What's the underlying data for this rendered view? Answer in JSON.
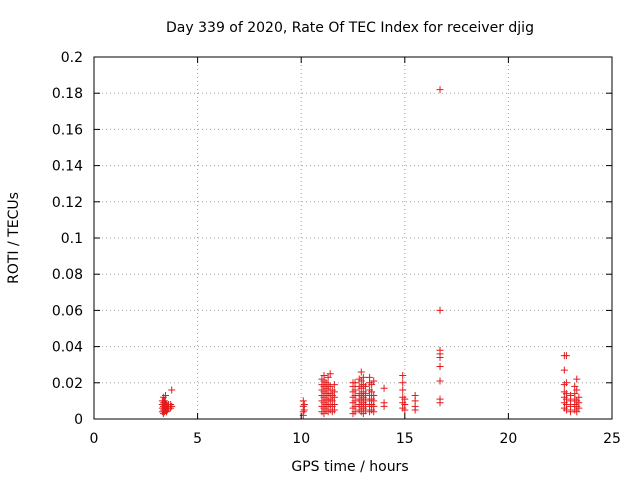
{
  "chart_data": {
    "type": "scatter",
    "title": "Day 339 of 2020, Rate Of TEC Index for receiver djig",
    "xlabel": "GPS time / hours",
    "ylabel": "ROTI / TECUs",
    "xlim": [
      0,
      25
    ],
    "ylim": [
      0,
      0.2
    ],
    "xticks": [
      "0",
      "5",
      "10",
      "15",
      "20",
      "25"
    ],
    "yticks": [
      "0",
      "0.02",
      "0.04",
      "0.06",
      "0.08",
      "0.1",
      "0.12",
      "0.14",
      "0.16",
      "0.18",
      "0.2"
    ],
    "grid": true,
    "marker": "+",
    "colors": {
      "points": "#e41a1c",
      "grid": "#a0a0a0",
      "axis": "#000000"
    },
    "series": [
      {
        "points": [
          [
            3.3,
            0.004
          ],
          [
            3.3,
            0.006
          ],
          [
            3.3,
            0.008
          ],
          [
            3.3,
            0.01
          ],
          [
            3.35,
            0.003
          ],
          [
            3.35,
            0.005
          ],
          [
            3.35,
            0.007
          ],
          [
            3.35,
            0.009
          ],
          [
            3.35,
            0.012
          ],
          [
            3.4,
            0.004
          ],
          [
            3.4,
            0.006
          ],
          [
            3.4,
            0.008
          ],
          [
            3.4,
            0.01
          ],
          [
            3.45,
            0.005
          ],
          [
            3.45,
            0.007
          ],
          [
            3.45,
            0.009
          ],
          [
            3.45,
            0.013
          ],
          [
            3.5,
            0.004
          ],
          [
            3.5,
            0.006
          ],
          [
            3.5,
            0.008
          ],
          [
            3.55,
            0.005
          ],
          [
            3.55,
            0.007
          ],
          [
            3.6,
            0.006
          ],
          [
            3.6,
            0.008
          ],
          [
            3.7,
            0.006
          ],
          [
            3.7,
            0.008
          ],
          [
            3.75,
            0.007
          ],
          [
            3.75,
            0.016
          ],
          [
            10.1,
            0.002
          ],
          [
            10.1,
            0.004
          ],
          [
            10.1,
            0.007
          ],
          [
            10.1,
            0.01
          ],
          [
            10.15,
            0.005
          ],
          [
            10.15,
            0.008
          ],
          [
            11.0,
            0.004
          ],
          [
            11.0,
            0.007
          ],
          [
            11.0,
            0.01
          ],
          [
            11.0,
            0.013
          ],
          [
            11.0,
            0.016
          ],
          [
            11.0,
            0.019
          ],
          [
            11.0,
            0.022
          ],
          [
            11.1,
            0.003
          ],
          [
            11.1,
            0.006
          ],
          [
            11.1,
            0.009
          ],
          [
            11.1,
            0.012
          ],
          [
            11.1,
            0.015
          ],
          [
            11.1,
            0.018
          ],
          [
            11.1,
            0.021
          ],
          [
            11.1,
            0.024
          ],
          [
            11.2,
            0.005
          ],
          [
            11.2,
            0.008
          ],
          [
            11.2,
            0.011
          ],
          [
            11.2,
            0.014
          ],
          [
            11.2,
            0.017
          ],
          [
            11.2,
            0.02
          ],
          [
            11.3,
            0.004
          ],
          [
            11.3,
            0.007
          ],
          [
            11.3,
            0.01
          ],
          [
            11.3,
            0.013
          ],
          [
            11.3,
            0.016
          ],
          [
            11.3,
            0.019
          ],
          [
            11.3,
            0.023
          ],
          [
            11.4,
            0.005
          ],
          [
            11.4,
            0.008
          ],
          [
            11.4,
            0.011
          ],
          [
            11.4,
            0.014
          ],
          [
            11.4,
            0.018
          ],
          [
            11.4,
            0.025
          ],
          [
            11.5,
            0.004
          ],
          [
            11.5,
            0.007
          ],
          [
            11.5,
            0.01
          ],
          [
            11.5,
            0.013
          ],
          [
            11.5,
            0.016
          ],
          [
            11.6,
            0.005
          ],
          [
            11.6,
            0.008
          ],
          [
            11.6,
            0.012
          ],
          [
            11.6,
            0.015
          ],
          [
            11.6,
            0.019
          ],
          [
            12.5,
            0.003
          ],
          [
            12.5,
            0.006
          ],
          [
            12.5,
            0.009
          ],
          [
            12.5,
            0.012
          ],
          [
            12.5,
            0.015
          ],
          [
            12.5,
            0.018
          ],
          [
            12.5,
            0.02
          ],
          [
            12.6,
            0.004
          ],
          [
            12.6,
            0.007
          ],
          [
            12.6,
            0.01
          ],
          [
            12.6,
            0.013
          ],
          [
            12.6,
            0.016
          ],
          [
            12.6,
            0.02
          ],
          [
            12.8,
            0.005
          ],
          [
            12.8,
            0.008
          ],
          [
            12.8,
            0.011
          ],
          [
            12.8,
            0.014
          ],
          [
            12.8,
            0.018
          ],
          [
            12.8,
            0.022
          ],
          [
            12.9,
            0.004
          ],
          [
            12.9,
            0.007
          ],
          [
            12.9,
            0.01
          ],
          [
            12.9,
            0.013
          ],
          [
            12.9,
            0.017
          ],
          [
            12.9,
            0.021
          ],
          [
            12.9,
            0.026
          ],
          [
            13.0,
            0.003
          ],
          [
            13.0,
            0.006
          ],
          [
            13.0,
            0.009
          ],
          [
            13.0,
            0.012
          ],
          [
            13.0,
            0.015
          ],
          [
            13.0,
            0.019
          ],
          [
            13.0,
            0.023
          ],
          [
            13.1,
            0.005
          ],
          [
            13.1,
            0.008
          ],
          [
            13.1,
            0.011
          ],
          [
            13.1,
            0.014
          ],
          [
            13.1,
            0.018
          ],
          [
            13.3,
            0.004
          ],
          [
            13.3,
            0.007
          ],
          [
            13.3,
            0.01
          ],
          [
            13.3,
            0.013
          ],
          [
            13.3,
            0.016
          ],
          [
            13.3,
            0.02
          ],
          [
            13.3,
            0.023
          ],
          [
            13.4,
            0.005
          ],
          [
            13.4,
            0.008
          ],
          [
            13.4,
            0.011
          ],
          [
            13.4,
            0.015
          ],
          [
            13.4,
            0.019
          ],
          [
            13.5,
            0.004
          ],
          [
            13.5,
            0.007
          ],
          [
            13.5,
            0.01
          ],
          [
            13.5,
            0.013
          ],
          [
            13.5,
            0.021
          ],
          [
            14.0,
            0.007
          ],
          [
            14.0,
            0.009
          ],
          [
            14.0,
            0.017
          ],
          [
            14.9,
            0.006
          ],
          [
            14.9,
            0.009
          ],
          [
            14.9,
            0.012
          ],
          [
            14.9,
            0.016
          ],
          [
            14.9,
            0.02
          ],
          [
            14.9,
            0.024
          ],
          [
            15.0,
            0.005
          ],
          [
            15.0,
            0.008
          ],
          [
            15.0,
            0.011
          ],
          [
            15.5,
            0.005
          ],
          [
            15.5,
            0.007
          ],
          [
            15.5,
            0.01
          ],
          [
            15.5,
            0.013
          ],
          [
            16.7,
            0.009
          ],
          [
            16.7,
            0.011
          ],
          [
            16.7,
            0.021
          ],
          [
            16.7,
            0.029
          ],
          [
            16.7,
            0.034
          ],
          [
            16.7,
            0.036
          ],
          [
            16.7,
            0.038
          ],
          [
            16.7,
            0.06
          ],
          [
            16.7,
            0.182
          ],
          [
            22.7,
            0.006
          ],
          [
            22.7,
            0.009
          ],
          [
            22.7,
            0.012
          ],
          [
            22.7,
            0.015
          ],
          [
            22.7,
            0.019
          ],
          [
            22.7,
            0.027
          ],
          [
            22.7,
            0.035
          ],
          [
            22.8,
            0.005
          ],
          [
            22.8,
            0.008
          ],
          [
            22.8,
            0.011
          ],
          [
            22.8,
            0.014
          ],
          [
            22.8,
            0.02
          ],
          [
            22.8,
            0.035
          ],
          [
            23.0,
            0.004
          ],
          [
            23.0,
            0.007
          ],
          [
            23.0,
            0.01
          ],
          [
            23.0,
            0.013
          ],
          [
            23.2,
            0.005
          ],
          [
            23.2,
            0.008
          ],
          [
            23.2,
            0.011
          ],
          [
            23.2,
            0.014
          ],
          [
            23.2,
            0.018
          ],
          [
            23.3,
            0.004
          ],
          [
            23.3,
            0.007
          ],
          [
            23.3,
            0.01
          ],
          [
            23.3,
            0.016
          ],
          [
            23.3,
            0.022
          ],
          [
            23.4,
            0.006
          ],
          [
            23.4,
            0.009
          ],
          [
            23.4,
            0.012
          ]
        ]
      }
    ]
  }
}
